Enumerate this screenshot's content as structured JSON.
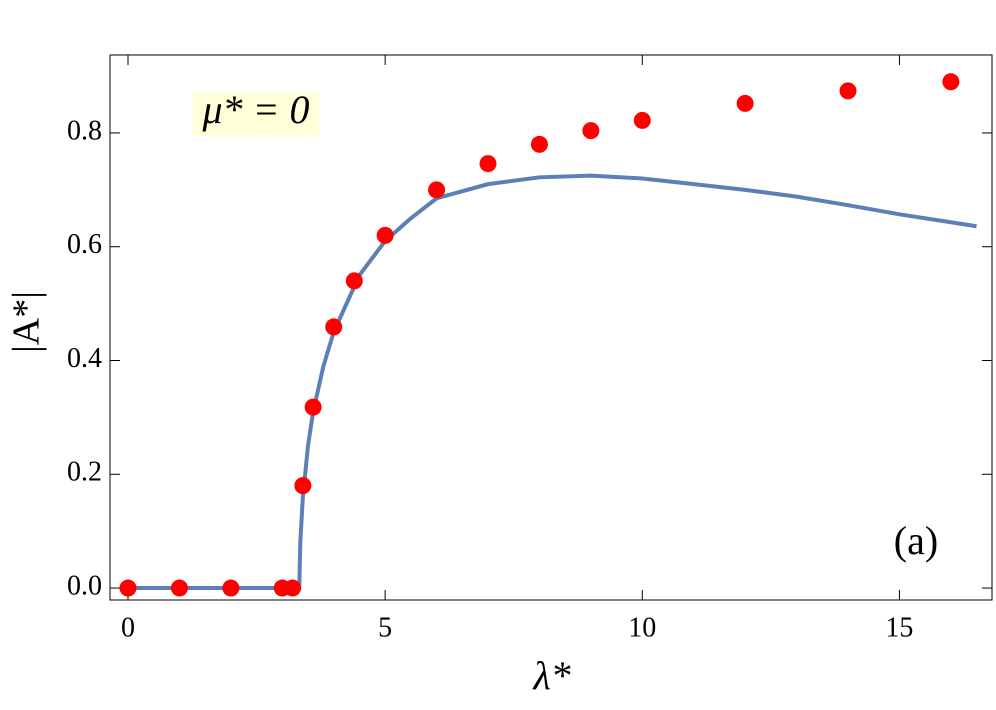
{
  "chart_data": {
    "type": "line",
    "x_label": "λ*",
    "y_label": "|A*|",
    "annotations": [
      "μ* = 0",
      "(a)"
    ],
    "xlim": [
      -0.35,
      16.8
    ],
    "ylim": [
      -0.021,
      0.937
    ],
    "xticks": [
      0,
      5,
      10,
      15
    ],
    "yticks": [
      {
        "value": 0,
        "label": "0.0"
      },
      0.2,
      0.4,
      0.6,
      0.8
    ],
    "series": [
      {
        "type": "line",
        "color": "#5b80b8",
        "x": [
          0,
          3.33,
          3.35,
          3.4,
          3.5,
          3.6,
          3.8,
          4,
          4.5,
          5,
          5.5,
          6,
          7,
          8,
          9,
          10,
          11,
          12,
          13,
          14,
          15,
          16,
          16.5
        ],
        "values": [
          0,
          0,
          0.08,
          0.16,
          0.25,
          0.31,
          0.39,
          0.45,
          0.55,
          0.61,
          0.65,
          0.685,
          0.71,
          0.722,
          0.725,
          0.72,
          0.71,
          0.7,
          0.688,
          0.673,
          0.657,
          0.643,
          0.636
        ]
      },
      {
        "type": "scatter",
        "color": "#ff0000",
        "x": [
          0,
          1,
          2,
          3,
          3.2,
          3.4,
          3.6,
          4,
          4.4,
          5,
          6,
          7,
          8,
          9,
          10,
          12,
          14,
          16
        ],
        "values": [
          0,
          0,
          0,
          0,
          0,
          0.18,
          0.318,
          0.459,
          0.54,
          0.62,
          0.7,
          0.746,
          0.78,
          0.804,
          0.822,
          0.852,
          0.874,
          0.89
        ]
      }
    ]
  }
}
